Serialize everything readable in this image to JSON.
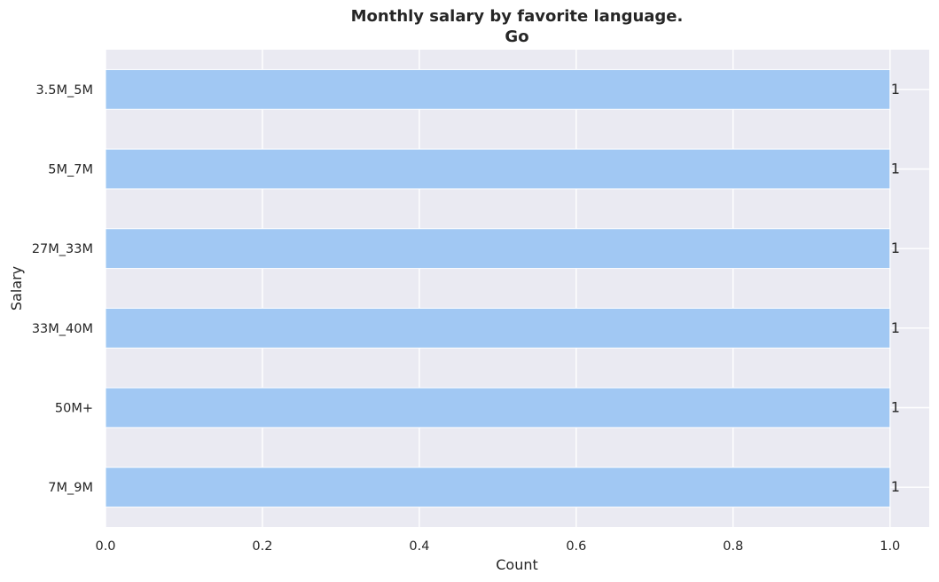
{
  "chart_data": {
    "type": "bar",
    "orientation": "horizontal",
    "title": "Monthly salary by favorite language.",
    "subtitle": "Go",
    "xlabel": "Count",
    "ylabel": "Salary",
    "categories": [
      "3.5M_5M",
      "5M_7M",
      "27M_33M",
      "33M_40M",
      "50M+",
      "7M_9M"
    ],
    "values": [
      1,
      1,
      1,
      1,
      1,
      1
    ],
    "data_labels": [
      "1",
      "1",
      "1",
      "1",
      "1",
      "1"
    ],
    "xlim": [
      0,
      1.05
    ],
    "x_ticks": [
      0.0,
      0.2,
      0.4,
      0.6,
      0.8,
      1.0
    ],
    "x_tick_labels": [
      "0.0",
      "0.2",
      "0.4",
      "0.6",
      "0.8",
      "1.0"
    ],
    "grid": true,
    "bar_color": "#a1c8f3",
    "background_color": "#eaeaf2",
    "grid_color": "#ffffff"
  }
}
